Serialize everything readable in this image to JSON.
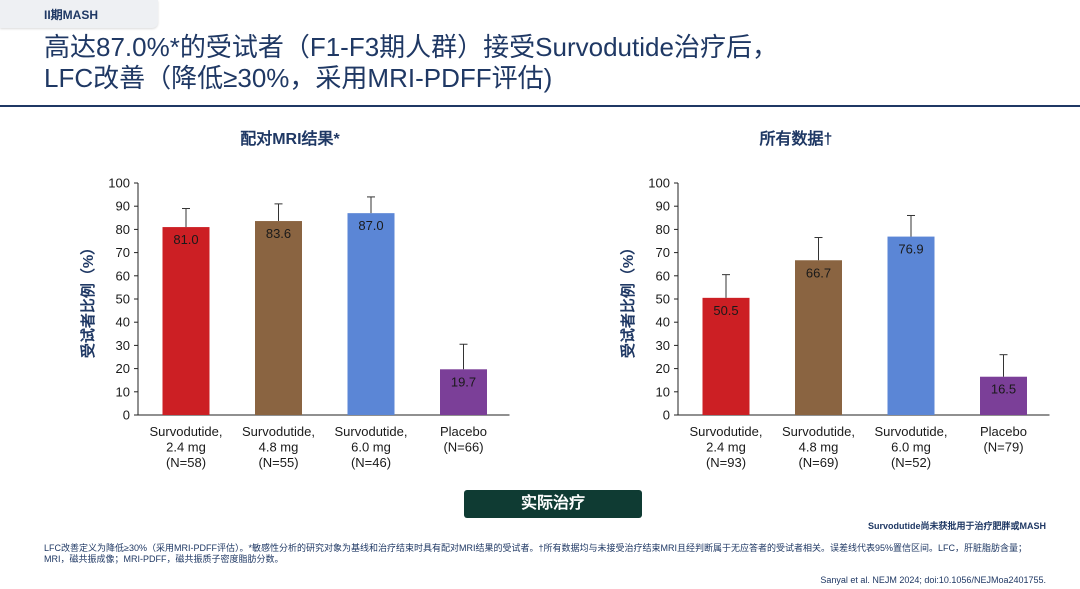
{
  "header": {
    "tag": "II期MASH",
    "title_line1": "高达87.0%*的受试者（F1-F3期人群）接受Survodutide治疗后，",
    "title_line2": "LFC改善（降低≥30%，采用MRI-PDFF评估)"
  },
  "colors": {
    "bar_2_4": "#cc1f24",
    "bar_4_8": "#8a6441",
    "bar_6_0": "#5b86d6",
    "placebo": "#7b3f98",
    "navy": "#1f3864",
    "button": "#0f3b33"
  },
  "chart_data": [
    {
      "type": "bar",
      "title": "配对MRI结果*",
      "ylabel": "受试者比例（%）",
      "ylim": [
        0,
        100
      ],
      "yticks": [
        0,
        10,
        20,
        30,
        40,
        50,
        60,
        70,
        80,
        90,
        100
      ],
      "grid": false,
      "categories": [
        [
          "Survodutide,",
          "2.4 mg",
          "(N=58)"
        ],
        [
          "Survodutide,",
          "4.8 mg",
          "(N=55)"
        ],
        [
          "Survodutide,",
          "6.0 mg",
          "(N=46)"
        ],
        [
          "Placebo",
          "(N=66)"
        ]
      ],
      "values": [
        81.0,
        83.6,
        87.0,
        19.7
      ],
      "value_labels": [
        "81.0",
        "83.6",
        "87.0",
        "19.7"
      ],
      "error_upper": [
        89,
        91,
        94,
        30.5
      ]
    },
    {
      "type": "bar",
      "title": "所有数据†",
      "ylabel": "受试者比例（%）",
      "ylim": [
        0,
        100
      ],
      "yticks": [
        0,
        10,
        20,
        30,
        40,
        50,
        60,
        70,
        80,
        90,
        100
      ],
      "grid": false,
      "categories": [
        [
          "Survodutide,",
          "2.4 mg",
          "(N=93)"
        ],
        [
          "Survodutide,",
          "4.8 mg",
          "(N=69)"
        ],
        [
          "Survodutide,",
          "6.0 mg",
          "(N=52)"
        ],
        [
          "Placebo",
          "(N=79)"
        ]
      ],
      "values": [
        50.5,
        66.7,
        76.9,
        16.5
      ],
      "value_labels": [
        "50.5",
        "66.7",
        "76.9",
        "16.5"
      ],
      "error_upper": [
        60.5,
        76.5,
        86,
        26
      ]
    }
  ],
  "button": {
    "label": "实际治疗"
  },
  "notice": "Survodutide尚未获批用于治疗肥胖或MASH",
  "footnote": "LFC改善定义为降低≥30%（采用MRI-PDFF评估）。*敏感性分析的研究对象为基线和治疗结束时具有配对MRI结果的受试者。†所有数据均与未接受治疗结束MRI且经判断属于无应答者的受试者相关。误差线代表95%置信区间。LFC，肝脏脂肪含量；MRI，磁共振成像；MRI-PDFF，磁共振质子密度脂肪分数。",
  "citation": "Sanyal et al. NEJM 2024; doi:10.1056/NEJMoa2401755."
}
